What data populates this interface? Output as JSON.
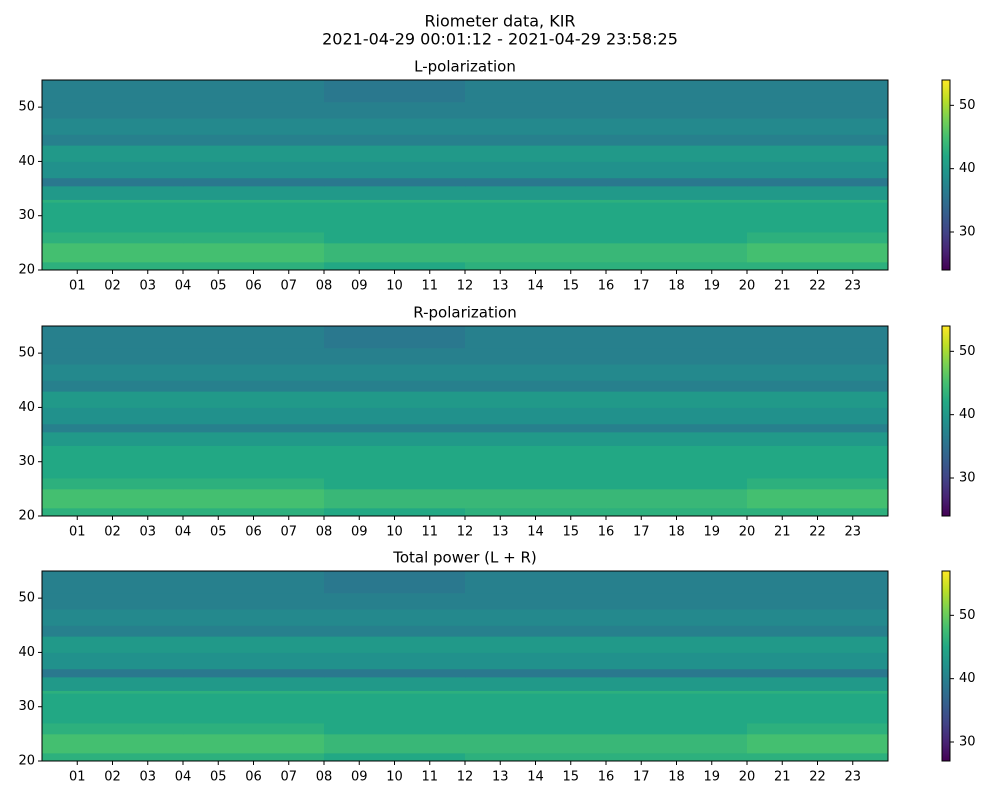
{
  "title": "Riometer data, KIR",
  "subtitle": "2021-04-29 00:01:12 - 2021-04-29 23:58:25",
  "chart_data": [
    {
      "type": "heatmap",
      "title": "L-polarization",
      "x_bins": [
        0,
        4,
        8,
        12,
        16,
        20,
        24
      ],
      "y_bins": [
        20,
        21.5,
        25,
        27,
        32.5,
        33,
        35.5,
        37,
        40,
        43,
        45,
        48,
        51,
        55
      ],
      "values": [
        [
          43,
          43,
          42,
          43,
          43,
          43
        ],
        [
          45,
          45,
          44,
          44,
          44,
          45
        ],
        [
          43,
          43,
          42,
          42,
          42,
          43
        ],
        [
          42,
          42,
          42,
          42,
          42,
          42
        ],
        [
          43,
          43,
          43,
          43,
          43,
          43
        ],
        [
          40,
          40,
          40,
          40,
          40,
          40
        ],
        [
          36,
          36,
          36,
          36,
          36,
          36
        ],
        [
          39,
          39,
          39,
          39,
          39,
          39
        ],
        [
          40,
          40,
          40,
          40,
          40,
          40
        ],
        [
          37,
          37,
          37,
          37,
          37,
          37
        ],
        [
          38,
          38,
          38,
          38,
          38,
          38
        ],
        [
          37,
          37,
          37,
          37,
          37,
          37
        ],
        [
          37,
          37,
          36,
          37,
          37,
          37
        ]
      ],
      "xlim": [
        0,
        24
      ],
      "ylim": [
        20,
        55
      ],
      "yticks": [
        20,
        30,
        40,
        50
      ],
      "xticks": [
        {
          "value": 1,
          "label": "01"
        },
        {
          "value": 2,
          "label": "02"
        },
        {
          "value": 3,
          "label": "03"
        },
        {
          "value": 4,
          "label": "04"
        },
        {
          "value": 5,
          "label": "05"
        },
        {
          "value": 6,
          "label": "06"
        },
        {
          "value": 7,
          "label": "07"
        },
        {
          "value": 8,
          "label": "08"
        },
        {
          "value": 9,
          "label": "09"
        },
        {
          "value": 10,
          "label": "10"
        },
        {
          "value": 11,
          "label": "11"
        },
        {
          "value": 12,
          "label": "12"
        },
        {
          "value": 13,
          "label": "13"
        },
        {
          "value": 14,
          "label": "14"
        },
        {
          "value": 15,
          "label": "15"
        },
        {
          "value": 16,
          "label": "16"
        },
        {
          "value": 17,
          "label": "17"
        },
        {
          "value": 18,
          "label": "18"
        },
        {
          "value": 19,
          "label": "19"
        },
        {
          "value": 20,
          "label": "20"
        },
        {
          "value": 21,
          "label": "21"
        },
        {
          "value": 22,
          "label": "22"
        },
        {
          "value": 23,
          "label": "23"
        }
      ],
      "clim": [
        24,
        54
      ],
      "cticks": [
        30,
        40,
        50
      ],
      "colormap": "viridis"
    },
    {
      "type": "heatmap",
      "title": "R-polarization",
      "x_bins": [
        0,
        4,
        8,
        12,
        16,
        20,
        24
      ],
      "y_bins": [
        20,
        21.5,
        25,
        27,
        32.5,
        33,
        35.5,
        37,
        40,
        43,
        45,
        48,
        51,
        55
      ],
      "values": [
        [
          43,
          43,
          42,
          43,
          43,
          43
        ],
        [
          45,
          45,
          44,
          44,
          44,
          45
        ],
        [
          43,
          43,
          42,
          42,
          42,
          43
        ],
        [
          42,
          42,
          42,
          42,
          42,
          42
        ],
        [
          42,
          42,
          42,
          42,
          42,
          42
        ],
        [
          40,
          40,
          40,
          40,
          40,
          40
        ],
        [
          37,
          37,
          37,
          37,
          37,
          37
        ],
        [
          39,
          39,
          39,
          39,
          39,
          39
        ],
        [
          40,
          40,
          40,
          40,
          40,
          40
        ],
        [
          37,
          37,
          37,
          37,
          37,
          37
        ],
        [
          38,
          38,
          38,
          38,
          38,
          38
        ],
        [
          37,
          37,
          37,
          37,
          37,
          37
        ],
        [
          37,
          37,
          36,
          37,
          37,
          37
        ]
      ],
      "xlim": [
        0,
        24
      ],
      "ylim": [
        20,
        55
      ],
      "yticks": [
        20,
        30,
        40,
        50
      ],
      "xticks": [
        {
          "value": 1,
          "label": "01"
        },
        {
          "value": 2,
          "label": "02"
        },
        {
          "value": 3,
          "label": "03"
        },
        {
          "value": 4,
          "label": "04"
        },
        {
          "value": 5,
          "label": "05"
        },
        {
          "value": 6,
          "label": "06"
        },
        {
          "value": 7,
          "label": "07"
        },
        {
          "value": 8,
          "label": "08"
        },
        {
          "value": 9,
          "label": "09"
        },
        {
          "value": 10,
          "label": "10"
        },
        {
          "value": 11,
          "label": "11"
        },
        {
          "value": 12,
          "label": "12"
        },
        {
          "value": 13,
          "label": "13"
        },
        {
          "value": 14,
          "label": "14"
        },
        {
          "value": 15,
          "label": "15"
        },
        {
          "value": 16,
          "label": "16"
        },
        {
          "value": 17,
          "label": "17"
        },
        {
          "value": 18,
          "label": "18"
        },
        {
          "value": 19,
          "label": "19"
        },
        {
          "value": 20,
          "label": "20"
        },
        {
          "value": 21,
          "label": "21"
        },
        {
          "value": 22,
          "label": "22"
        },
        {
          "value": 23,
          "label": "23"
        }
      ],
      "clim": [
        24,
        54
      ],
      "cticks": [
        30,
        40,
        50
      ],
      "colormap": "viridis"
    },
    {
      "type": "heatmap",
      "title": "Total power (L + R)",
      "x_bins": [
        0,
        4,
        8,
        12,
        16,
        20,
        24
      ],
      "y_bins": [
        20,
        21.5,
        25,
        27,
        32.5,
        33,
        35.5,
        37,
        40,
        43,
        45,
        48,
        51,
        55
      ],
      "values": [
        [
          46,
          46,
          45,
          46,
          46,
          46
        ],
        [
          48,
          48,
          47,
          47,
          47,
          48
        ],
        [
          46,
          46,
          45,
          45,
          45,
          46
        ],
        [
          45,
          45,
          45,
          45,
          45,
          45
        ],
        [
          46,
          46,
          46,
          46,
          46,
          46
        ],
        [
          43,
          43,
          43,
          43,
          43,
          43
        ],
        [
          39,
          39,
          39,
          39,
          39,
          39
        ],
        [
          42,
          42,
          42,
          42,
          42,
          42
        ],
        [
          43,
          43,
          43,
          43,
          43,
          43
        ],
        [
          40,
          40,
          40,
          40,
          40,
          40
        ],
        [
          41,
          41,
          41,
          41,
          41,
          41
        ],
        [
          40,
          40,
          40,
          40,
          40,
          40
        ],
        [
          40,
          40,
          39,
          40,
          40,
          40
        ]
      ],
      "xlim": [
        0,
        24
      ],
      "ylim": [
        20,
        55
      ],
      "yticks": [
        20,
        30,
        40,
        50
      ],
      "xticks": [
        {
          "value": 1,
          "label": "01"
        },
        {
          "value": 2,
          "label": "02"
        },
        {
          "value": 3,
          "label": "03"
        },
        {
          "value": 4,
          "label": "04"
        },
        {
          "value": 5,
          "label": "05"
        },
        {
          "value": 6,
          "label": "06"
        },
        {
          "value": 7,
          "label": "07"
        },
        {
          "value": 8,
          "label": "08"
        },
        {
          "value": 9,
          "label": "09"
        },
        {
          "value": 10,
          "label": "10"
        },
        {
          "value": 11,
          "label": "11"
        },
        {
          "value": 12,
          "label": "12"
        },
        {
          "value": 13,
          "label": "13"
        },
        {
          "value": 14,
          "label": "14"
        },
        {
          "value": 15,
          "label": "15"
        },
        {
          "value": 16,
          "label": "16"
        },
        {
          "value": 17,
          "label": "17"
        },
        {
          "value": 18,
          "label": "18"
        },
        {
          "value": 19,
          "label": "19"
        },
        {
          "value": 20,
          "label": "20"
        },
        {
          "value": 21,
          "label": "21"
        },
        {
          "value": 22,
          "label": "22"
        },
        {
          "value": 23,
          "label": "23"
        }
      ],
      "clim": [
        27,
        57
      ],
      "cticks": [
        30,
        40,
        50
      ],
      "colormap": "viridis"
    }
  ]
}
